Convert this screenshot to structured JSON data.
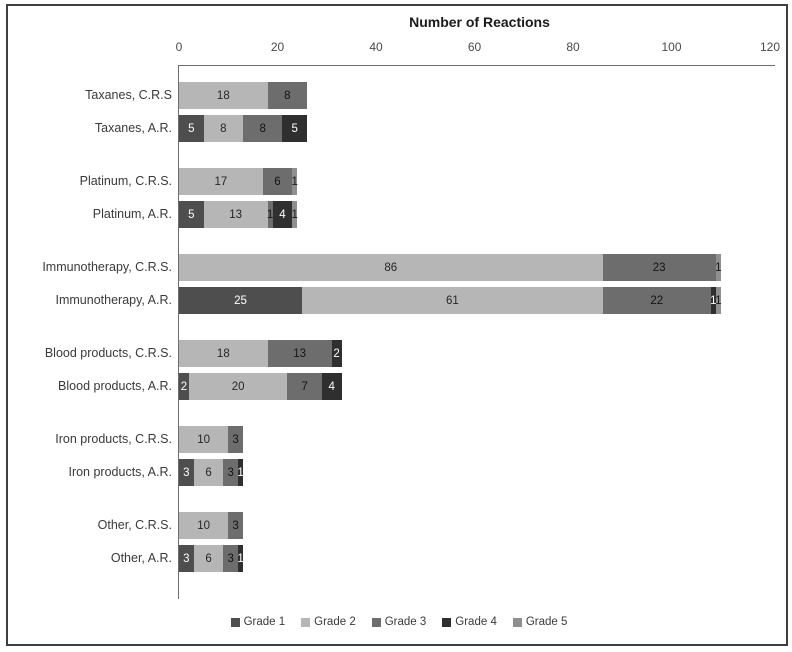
{
  "figure": {
    "background": "#ffffff",
    "border_color": "#3f3f3f",
    "axis_line_color": "#6e6e6e"
  },
  "chart_data": {
    "type": "bar",
    "orientation": "horizontal",
    "stacked": true,
    "title": "Number of Reactions",
    "xlabel": "Number of Reactions",
    "ylabel": "",
    "grid": false,
    "legend_position": "bottom",
    "axis_min": 0,
    "axis_max": 120,
    "tick_values": [
      0,
      20,
      40,
      60,
      80,
      100,
      120
    ],
    "tick_labels": [
      "0",
      "20",
      "40",
      "60",
      "80",
      "100",
      "120"
    ],
    "categories": [
      "Taxanes, C.R.S",
      "Taxanes, A.R.",
      "Platinum, C.R.S.",
      "Platinum, A.R.",
      "Immunotherapy, C.R.S.",
      "Immunotherapy, A.R.",
      "Blood products, C.R.S.",
      "Blood products, A.R.",
      "Iron products, C.R.S.",
      "Iron products, A.R.",
      "Other, C.R.S.",
      "Other, A.R."
    ],
    "series": [
      {
        "name": "Grade 1",
        "color": "#4e4e4e",
        "label_color": "#ffffff",
        "values": [
          0,
          5,
          0,
          5,
          0,
          25,
          0,
          2,
          0,
          3,
          0,
          3
        ]
      },
      {
        "name": "Grade 2",
        "color": "#b6b6b6",
        "label_color": "#262626",
        "values": [
          18,
          8,
          17,
          13,
          86,
          61,
          18,
          20,
          10,
          6,
          10,
          6
        ]
      },
      {
        "name": "Grade 3",
        "color": "#6d6d6d",
        "label_color": "#141414",
        "values": [
          8,
          8,
          6,
          1,
          23,
          22,
          13,
          7,
          3,
          3,
          3,
          3
        ]
      },
      {
        "name": "Grade 4",
        "color": "#2f2f2f",
        "label_color": "#ffffff",
        "values": [
          0,
          5,
          0,
          4,
          0,
          1,
          2,
          4,
          0,
          1,
          0,
          1
        ]
      },
      {
        "name": "Grade 5",
        "color": "#8f8f8f",
        "label_color": "#1a1a1a",
        "values": [
          0,
          0,
          1,
          1,
          1,
          1,
          0,
          0,
          0,
          0,
          0,
          0
        ]
      }
    ],
    "legend": [
      "Grade 1",
      "Grade 2",
      "Grade 3",
      "Grade 4",
      "Grade 5"
    ]
  }
}
